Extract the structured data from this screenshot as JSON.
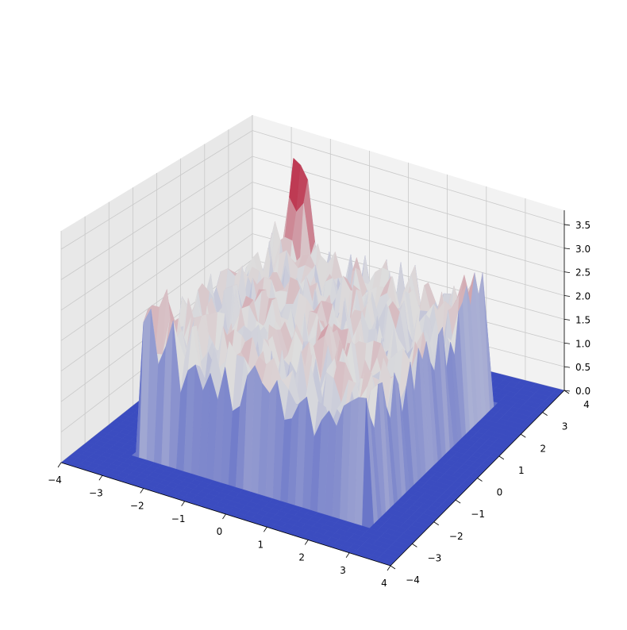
{
  "chart_data": {
    "type": "surface3d",
    "colormap": "coolwarm",
    "colors": {
      "low": "#3b4cc0",
      "mid": "#dddddd",
      "high": "#b40426",
      "pane_back": "#f2f2f2",
      "pane_side": "#e8e8e8",
      "pane_floor": "#ebebeb",
      "grid": "#c9c9c9"
    },
    "x": {
      "label": "",
      "lim": [
        -4,
        4
      ],
      "ticks": [
        -4,
        -3,
        -2,
        -1,
        0,
        1,
        2,
        3,
        4
      ],
      "tick_labels": [
        "−4",
        "−3",
        "−2",
        "−1",
        "0",
        "1",
        "2",
        "3",
        "4"
      ]
    },
    "y": {
      "label": "",
      "lim": [
        -4,
        4
      ],
      "ticks": [
        -4,
        -3,
        -2,
        -1,
        0,
        1,
        2,
        3,
        4
      ],
      "tick_labels": [
        "−4",
        "−3",
        "−2",
        "−1",
        "0",
        "1",
        "2",
        "3",
        "4"
      ]
    },
    "z": {
      "label": "",
      "lim": [
        0,
        3.8
      ],
      "ticks": [
        0,
        0.5,
        1,
        1.5,
        2,
        2.5,
        3,
        3.5
      ],
      "tick_labels": [
        "0.0",
        "0.5",
        "1.0",
        "1.5",
        "2.0",
        "2.5",
        "3.0",
        "3.5"
      ]
    },
    "surface": {
      "description_of_shape": "noisy plateau over square region",
      "plateau_region": {
        "x": [
          -2.8,
          2.8
        ],
        "y": [
          -2.8,
          2.8
        ]
      },
      "base_value": 0,
      "typical_plateau_value": 1.8,
      "noise_amplitude": 0.6,
      "peaks": [
        {
          "x": -2.0,
          "y": 2.8,
          "z": 3.8
        },
        {
          "x": -2.5,
          "y": -2.5,
          "z": 2.4
        },
        {
          "x": 2.6,
          "y": 2.2,
          "z": 3.0
        },
        {
          "x": 0.8,
          "y": -1.0,
          "z": 2.2
        }
      ]
    },
    "grid": true
  }
}
